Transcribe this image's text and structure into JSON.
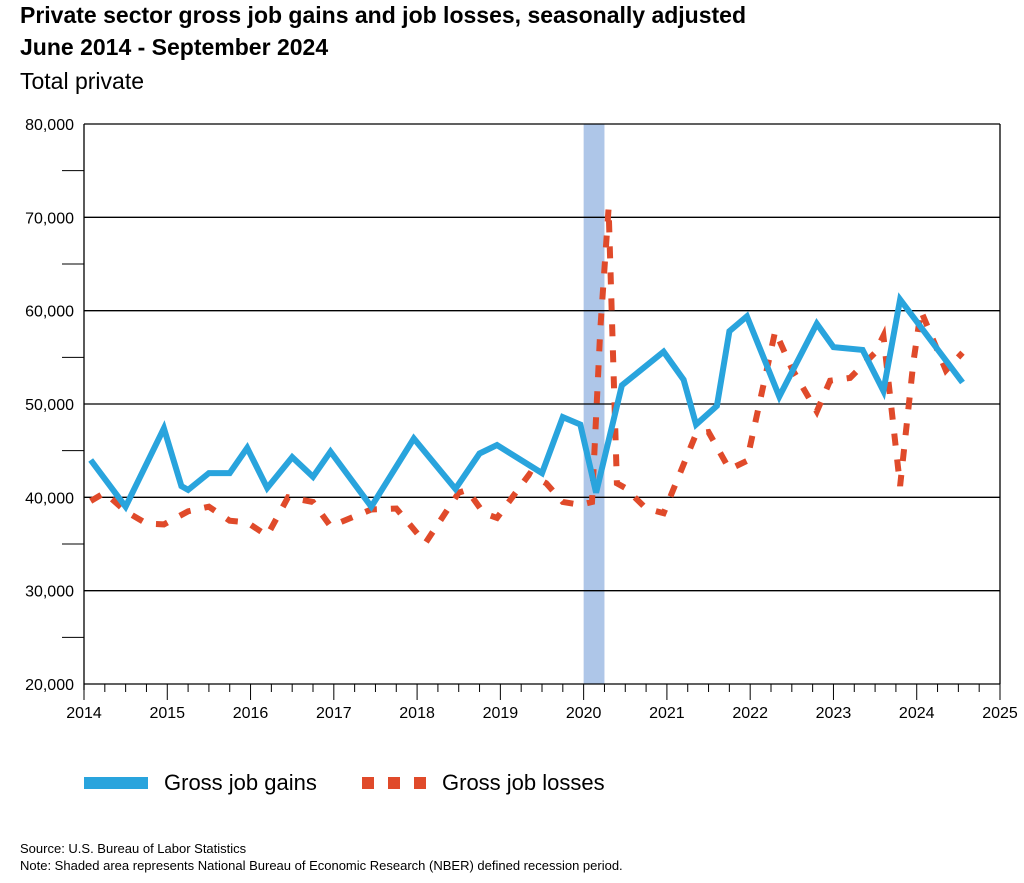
{
  "header": {
    "title_line1": "Private sector gross job gains and job losses, seasonally adjusted",
    "title_line2": "June 2014 - September 2024",
    "subtitle": "Total private"
  },
  "legend": {
    "gains_label": "Gross job gains",
    "losses_label": "Gross job losses"
  },
  "footer": {
    "source": "Source: U.S. Bureau of Labor Statistics",
    "note": "Note: Shaded area represents National Bureau of Economic Research (NBER) defined recession period."
  },
  "colors": {
    "gains": "#29a4dd",
    "losses": "#e04a2a",
    "recession": "#aec6e8",
    "grid": "#000000"
  },
  "chart_data": {
    "type": "line",
    "xlim": [
      2014,
      2025
    ],
    "ylim": [
      20000,
      80000
    ],
    "x_ticks": [
      2014,
      2015,
      2016,
      2017,
      2018,
      2019,
      2020,
      2021,
      2022,
      2023,
      2024,
      2025
    ],
    "y_ticks": [
      20000,
      30000,
      40000,
      50000,
      60000,
      70000,
      80000
    ],
    "y_tick_labels": [
      "20,000",
      "30,000",
      "40,000",
      "50,000",
      "60,000",
      "70,000",
      "80,000"
    ],
    "grid": "horizontal",
    "legend_position": "bottom",
    "recession": {
      "start": 2020.0,
      "end": 2020.25
    },
    "series": [
      {
        "name": "Gross job gains",
        "points": [
          [
            2014.08,
            44000
          ],
          [
            2014.5,
            39000
          ],
          [
            2014.96,
            47400
          ],
          [
            2015.17,
            41200
          ],
          [
            2015.25,
            40800
          ],
          [
            2015.5,
            42600
          ],
          [
            2015.75,
            42600
          ],
          [
            2015.96,
            45300
          ],
          [
            2016.2,
            41000
          ],
          [
            2016.5,
            44300
          ],
          [
            2016.75,
            42200
          ],
          [
            2016.96,
            44900
          ],
          [
            2017.45,
            39000
          ],
          [
            2017.96,
            46300
          ],
          [
            2018.46,
            40900
          ],
          [
            2018.75,
            44700
          ],
          [
            2018.96,
            45600
          ],
          [
            2019.5,
            42600
          ],
          [
            2019.75,
            48600
          ],
          [
            2019.96,
            47800
          ],
          [
            2020.15,
            40500
          ],
          [
            2020.46,
            52000
          ],
          [
            2020.96,
            55600
          ],
          [
            2021.2,
            52600
          ],
          [
            2021.35,
            47800
          ],
          [
            2021.6,
            49800
          ],
          [
            2021.75,
            57800
          ],
          [
            2021.96,
            59400
          ],
          [
            2022.35,
            50800
          ],
          [
            2022.8,
            58600
          ],
          [
            2023.0,
            56100
          ],
          [
            2023.35,
            55800
          ],
          [
            2023.6,
            51400
          ],
          [
            2023.8,
            61200
          ],
          [
            2024.55,
            52300
          ]
        ]
      },
      {
        "name": "Gross job losses",
        "points": [
          [
            2014.08,
            39600
          ],
          [
            2014.25,
            40500
          ],
          [
            2014.5,
            38500
          ],
          [
            2014.75,
            37200
          ],
          [
            2014.96,
            37100
          ],
          [
            2015.25,
            38500
          ],
          [
            2015.5,
            39000
          ],
          [
            2015.75,
            37500
          ],
          [
            2015.96,
            37300
          ],
          [
            2016.2,
            35900
          ],
          [
            2016.45,
            40000
          ],
          [
            2016.75,
            39500
          ],
          [
            2016.96,
            36900
          ],
          [
            2017.45,
            38700
          ],
          [
            2017.75,
            38800
          ],
          [
            2018.1,
            35100
          ],
          [
            2018.5,
            40500
          ],
          [
            2018.6,
            40800
          ],
          [
            2018.8,
            38300
          ],
          [
            2018.96,
            37800
          ],
          [
            2019.35,
            42500
          ],
          [
            2019.55,
            41500
          ],
          [
            2019.75,
            39500
          ],
          [
            2019.96,
            39200
          ],
          [
            2020.1,
            39500
          ],
          [
            2020.2,
            58000
          ],
          [
            2020.3,
            71000
          ],
          [
            2020.4,
            41500
          ],
          [
            2020.5,
            41000
          ],
          [
            2020.75,
            38800
          ],
          [
            2020.96,
            38300
          ],
          [
            2021.35,
            46800
          ],
          [
            2021.5,
            47000
          ],
          [
            2021.75,
            43000
          ],
          [
            2021.96,
            43900
          ],
          [
            2022.3,
            57800
          ],
          [
            2022.5,
            53800
          ],
          [
            2022.8,
            49200
          ],
          [
            2022.96,
            52500
          ],
          [
            2023.2,
            52800
          ],
          [
            2023.5,
            55500
          ],
          [
            2023.6,
            57300
          ],
          [
            2023.8,
            41200
          ],
          [
            2023.96,
            54500
          ],
          [
            2024.05,
            60000
          ],
          [
            2024.35,
            53600
          ],
          [
            2024.55,
            55500
          ]
        ]
      }
    ]
  }
}
